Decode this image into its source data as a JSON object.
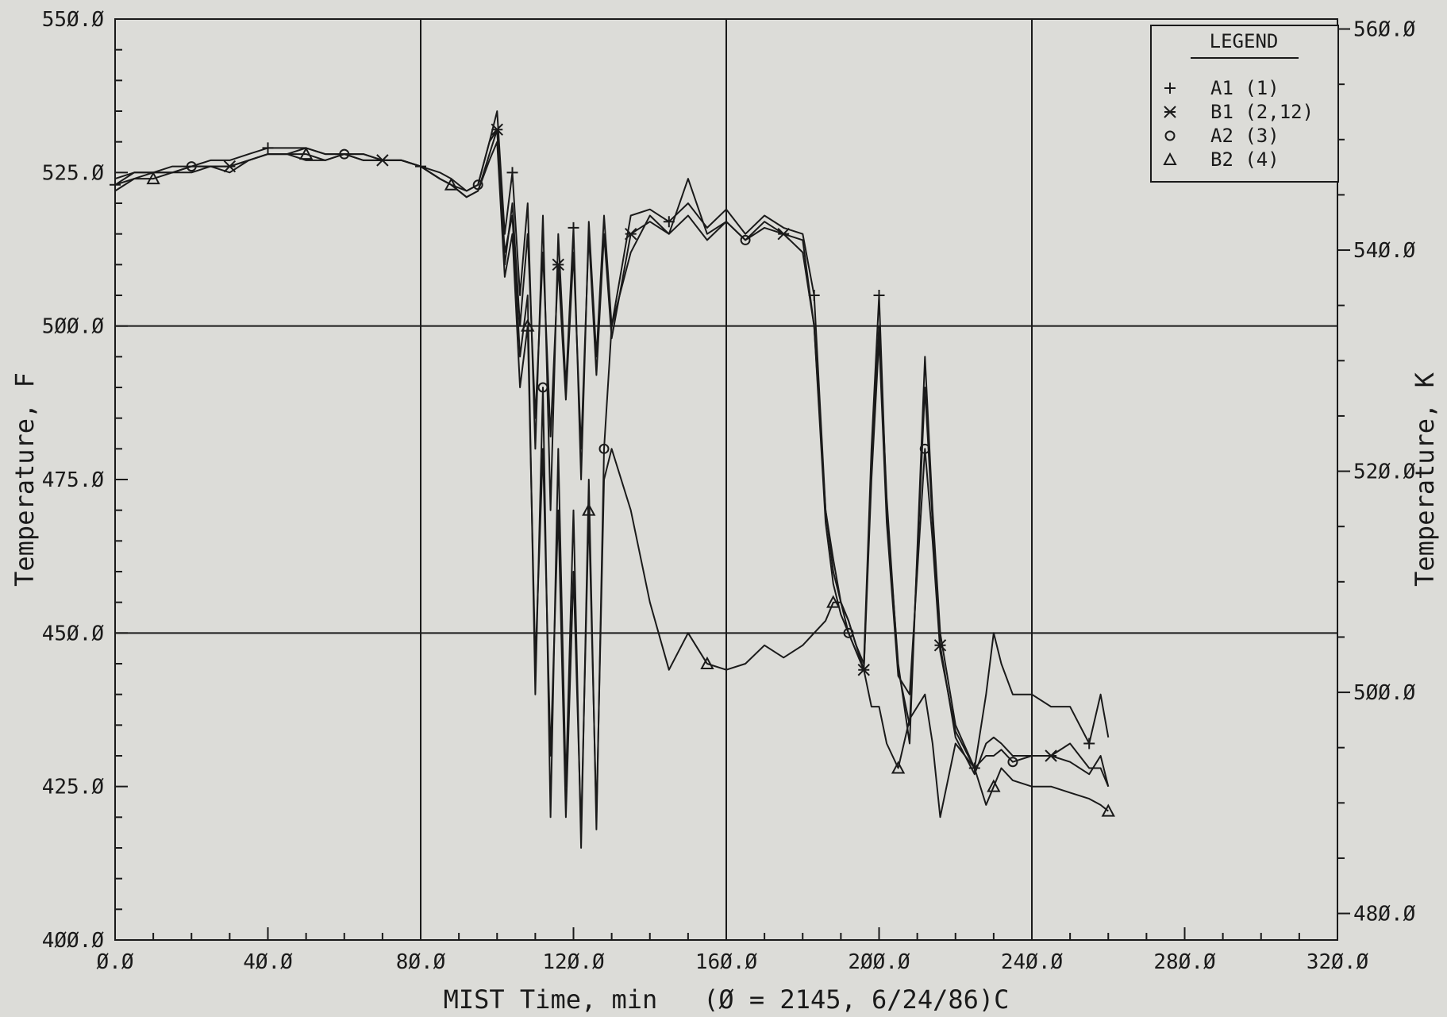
{
  "chart_data": {
    "type": "line",
    "title": "",
    "xlabel": "MIST Time, min   (Ø = 2145, 6/24/86)C",
    "ylabel": "Temperature, F",
    "y2label": "Temperature, K",
    "xlim": [
      0,
      320
    ],
    "ylim": [
      400,
      550
    ],
    "y2lim": [
      477.6,
      560.9
    ],
    "x_tick_labels": [
      "Ø.Ø",
      "4Ø.Ø",
      "8Ø.Ø",
      "12Ø.Ø",
      "16Ø.Ø",
      "2ØØ.Ø",
      "24Ø.Ø",
      "28Ø.Ø",
      "32Ø.Ø"
    ],
    "x_ticks": [
      0,
      40,
      80,
      120,
      160,
      200,
      240,
      280,
      320
    ],
    "y_tick_labels": [
      "4ØØ.Ø",
      "425.Ø",
      "45Ø.Ø",
      "475.Ø",
      "5ØØ.Ø",
      "525.Ø",
      "55Ø.Ø"
    ],
    "y_ticks": [
      400,
      425,
      450,
      475,
      500,
      525,
      550
    ],
    "y2_tick_labels": [
      "48Ø.Ø",
      "5ØØ.Ø",
      "52Ø.Ø",
      "54Ø.Ø",
      "56Ø.Ø"
    ],
    "y2_ticks": [
      480,
      500,
      520,
      540,
      560
    ],
    "grid": true,
    "legend_position": "top-right",
    "legend_title": "LEGEND",
    "series": [
      {
        "name": "A1  (1)",
        "marker": "+",
        "x": [
          0,
          5,
          10,
          15,
          20,
          25,
          30,
          35,
          40,
          45,
          50,
          55,
          60,
          65,
          70,
          75,
          80,
          85,
          88,
          92,
          95,
          98,
          100,
          102,
          104,
          106,
          108,
          110,
          112,
          114,
          116,
          118,
          120,
          122,
          124,
          126,
          128,
          130,
          135,
          140,
          145,
          150,
          155,
          160,
          165,
          170,
          175,
          180,
          183,
          186,
          188,
          190,
          192,
          194,
          196,
          198,
          200,
          202,
          205,
          208,
          212,
          214,
          216,
          220,
          225,
          228,
          230,
          232,
          235,
          240,
          245,
          250,
          255,
          258,
          260
        ],
        "y": [
          523,
          525,
          525,
          526,
          526,
          527,
          527,
          528,
          529,
          529,
          529,
          528,
          528,
          528,
          527,
          527,
          526,
          525,
          524,
          522,
          523,
          530,
          535,
          515,
          525,
          505,
          520,
          480,
          518,
          470,
          515,
          490,
          516,
          475,
          517,
          495,
          518,
          500,
          518,
          519,
          517,
          520,
          516,
          519,
          515,
          518,
          516,
          515,
          505,
          470,
          460,
          455,
          452,
          448,
          445,
          480,
          505,
          470,
          445,
          432,
          495,
          470,
          450,
          435,
          428,
          440,
          450,
          445,
          440,
          440,
          438,
          438,
          432,
          440,
          433
        ]
      },
      {
        "name": "B1  (2,12)",
        "marker": "*",
        "x": [
          0,
          5,
          10,
          15,
          20,
          25,
          30,
          35,
          40,
          45,
          50,
          55,
          60,
          65,
          70,
          75,
          80,
          85,
          88,
          92,
          95,
          98,
          100,
          102,
          104,
          106,
          108,
          110,
          112,
          114,
          116,
          118,
          120,
          122,
          124,
          126,
          128,
          130,
          135,
          140,
          145,
          150,
          155,
          160,
          165,
          170,
          175,
          180,
          183,
          186,
          188,
          190,
          192,
          194,
          196,
          198,
          200,
          202,
          205,
          208,
          212,
          214,
          216,
          220,
          225,
          228,
          230,
          232,
          235,
          240,
          245,
          250,
          255,
          258,
          260
        ],
        "y": [
          522,
          524,
          525,
          525,
          526,
          526,
          526,
          527,
          528,
          528,
          529,
          528,
          528,
          527,
          527,
          527,
          526,
          524,
          523,
          521,
          522,
          528,
          532,
          510,
          520,
          500,
          515,
          485,
          512,
          482,
          510,
          488,
          512,
          480,
          515,
          492,
          515,
          498,
          515,
          517,
          515,
          518,
          514,
          517,
          514,
          516,
          515,
          512,
          500,
          468,
          458,
          453,
          450,
          447,
          444,
          478,
          500,
          472,
          444,
          435,
          490,
          468,
          448,
          433,
          427,
          432,
          433,
          432,
          430,
          430,
          430,
          429,
          427,
          430,
          425
        ]
      },
      {
        "name": "A2  (3)",
        "marker": "o",
        "x": [
          0,
          5,
          10,
          15,
          20,
          25,
          30,
          35,
          40,
          45,
          50,
          55,
          60,
          65,
          70,
          75,
          80,
          85,
          88,
          92,
          95,
          98,
          100,
          102,
          104,
          106,
          108,
          110,
          112,
          114,
          116,
          118,
          120,
          122,
          124,
          126,
          128,
          130,
          135,
          140,
          145,
          150,
          155,
          160,
          165,
          170,
          175,
          180,
          183,
          186,
          188,
          190,
          192,
          194,
          196,
          198,
          200,
          202,
          205,
          208,
          212,
          214,
          216,
          220,
          225,
          228,
          230,
          232,
          235,
          240,
          245,
          250,
          255,
          258,
          260
        ],
        "y": [
          524,
          525,
          525,
          525,
          526,
          526,
          525,
          527,
          528,
          528,
          527,
          527,
          528,
          528,
          527,
          527,
          526,
          524,
          523,
          522,
          523,
          530,
          532,
          512,
          518,
          495,
          505,
          440,
          490,
          420,
          480,
          425,
          470,
          415,
          475,
          418,
          480,
          500,
          512,
          518,
          515,
          524,
          515,
          517,
          514,
          517,
          515,
          514,
          500,
          470,
          462,
          455,
          450,
          447,
          444,
          475,
          498,
          468,
          443,
          440,
          480,
          465,
          447,
          434,
          428,
          430,
          430,
          431,
          429,
          430,
          430,
          432,
          428,
          428,
          425
        ]
      },
      {
        "name": "B2  (4)",
        "marker": "Δ",
        "x": [
          0,
          5,
          10,
          15,
          20,
          25,
          30,
          35,
          40,
          45,
          50,
          55,
          60,
          65,
          70,
          75,
          80,
          85,
          88,
          92,
          95,
          98,
          100,
          102,
          104,
          106,
          108,
          110,
          112,
          114,
          116,
          118,
          120,
          122,
          124,
          126,
          128,
          130,
          135,
          140,
          145,
          150,
          155,
          160,
          165,
          170,
          175,
          180,
          183,
          186,
          188,
          190,
          192,
          194,
          196,
          198,
          200,
          202,
          205,
          208,
          212,
          214,
          216,
          220,
          225,
          228,
          230,
          232,
          235,
          240,
          245,
          250,
          255,
          258,
          260
        ],
        "y": [
          523,
          524,
          524,
          525,
          525,
          526,
          526,
          527,
          528,
          528,
          528,
          527,
          528,
          527,
          527,
          527,
          526,
          524,
          523,
          521,
          522,
          527,
          530,
          508,
          515,
          490,
          500,
          445,
          480,
          430,
          470,
          420,
          460,
          418,
          470,
          420,
          475,
          480,
          470,
          455,
          444,
          450,
          445,
          444,
          445,
          448,
          446,
          448,
          450,
          452,
          455,
          455,
          452,
          448,
          444,
          438,
          438,
          432,
          428,
          436,
          440,
          432,
          420,
          432,
          428,
          422,
          425,
          428,
          426,
          425,
          425,
          424,
          423,
          422,
          421
        ]
      }
    ]
  }
}
